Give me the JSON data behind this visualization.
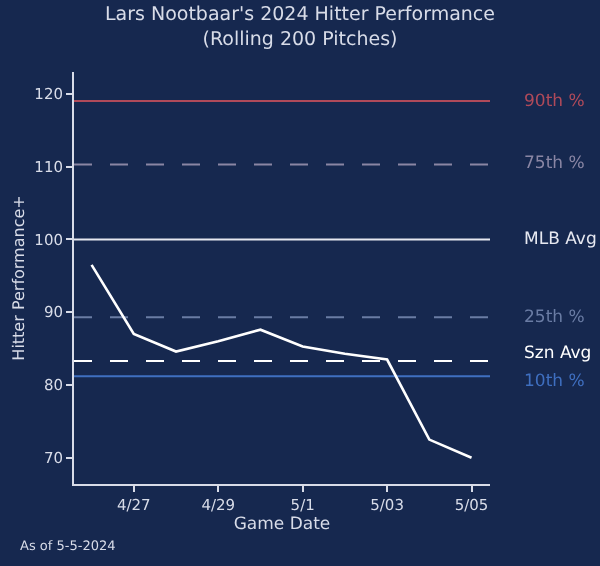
{
  "chart_data": {
    "type": "line",
    "title": "Lars Nootbaar's 2024 Hitter Performance\n(Rolling 200 Pitches)",
    "xlabel": "Game Date",
    "ylabel": "Hitter Performance+",
    "x": [
      "2024-04-26",
      "2024-04-27",
      "2024-04-28",
      "2024-04-29",
      "2024-04-30",
      "2024-05-01",
      "2024-05-02",
      "2024-05-03",
      "2024-05-04",
      "2024-05-05"
    ],
    "series": [
      {
        "color": "#ffffff",
        "values": [
          96.5,
          87,
          84.6,
          86,
          87.6,
          85.3,
          84.3,
          83.5,
          72.5,
          70
        ]
      }
    ],
    "xlim": [
      "2024-04-25T14:00",
      "2024-05-05T10:30"
    ],
    "xticks": [
      {
        "value": "2024-04-27",
        "label": "4/27"
      },
      {
        "value": "2024-04-29",
        "label": "4/29"
      },
      {
        "value": "2024-05-01",
        "label": "5/1"
      },
      {
        "value": "2024-05-03",
        "label": "5/03"
      },
      {
        "value": "2024-05-05",
        "label": "5/05"
      }
    ],
    "ylim": [
      66.4,
      123
    ],
    "yticks": [
      70,
      80,
      90,
      100,
      110,
      120
    ],
    "ref_lines": [
      {
        "axis": "y",
        "value": 119,
        "label": "90th %",
        "color": "#b04a5a",
        "line_style": "solid"
      },
      {
        "axis": "y",
        "value": 110.3,
        "label": "75th %",
        "color": "#8a86a4",
        "line_style": "dashed"
      },
      {
        "axis": "y",
        "value": 100,
        "label": "MLB Avg",
        "color": "#e6e8f0",
        "line_style": "solid"
      },
      {
        "axis": "y",
        "value": 89.3,
        "label": "25th %",
        "color": "#6a7ca4",
        "line_style": "dashed"
      },
      {
        "axis": "y",
        "value": 83.3,
        "label": "Szn Avg",
        "color": "#ffffff",
        "line_style": "dashed"
      },
      {
        "axis": "y",
        "value": 81.2,
        "label": "10th %",
        "color": "#3f6fc0",
        "line_style": "solid"
      }
    ],
    "grid": false,
    "marker": "none",
    "line_style": "solid",
    "annotations": [
      "As of 5-5-2024"
    ]
  }
}
